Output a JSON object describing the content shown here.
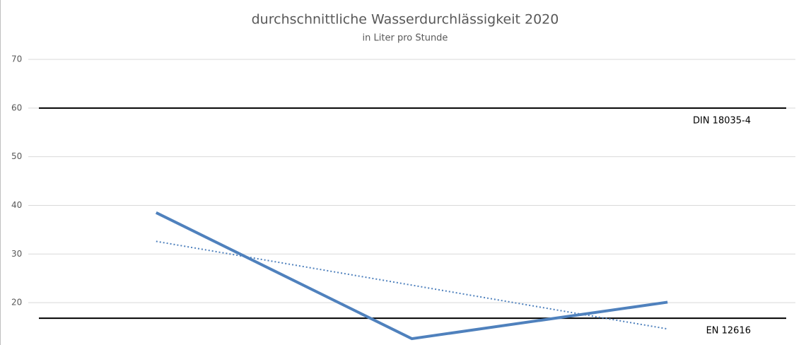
{
  "chart_data": {
    "type": "line",
    "title": "durchschnittliche Wasserdurchlässigkeit 2020",
    "subtitle": "in Liter pro Stunde",
    "categories": [
      null,
      null,
      null
    ],
    "series": [
      {
        "color": "#4f81bd",
        "values": [
          38.5,
          12.6,
          20.1
        ],
        "style": "solid"
      },
      {
        "color": "#4f81bd",
        "values": [
          32.6,
          23.6,
          14.6
        ],
        "style": "dotted"
      }
    ],
    "reference_lines": [
      {
        "label": "DIN 18035-4",
        "value": 60,
        "color": "#000000"
      },
      {
        "label": "EN 12616",
        "value": 16.8,
        "color": "#000000"
      }
    ],
    "ylim": [
      11.3,
      70
    ],
    "yticks": [
      20,
      30,
      40,
      50,
      60,
      70
    ],
    "grid": true
  }
}
